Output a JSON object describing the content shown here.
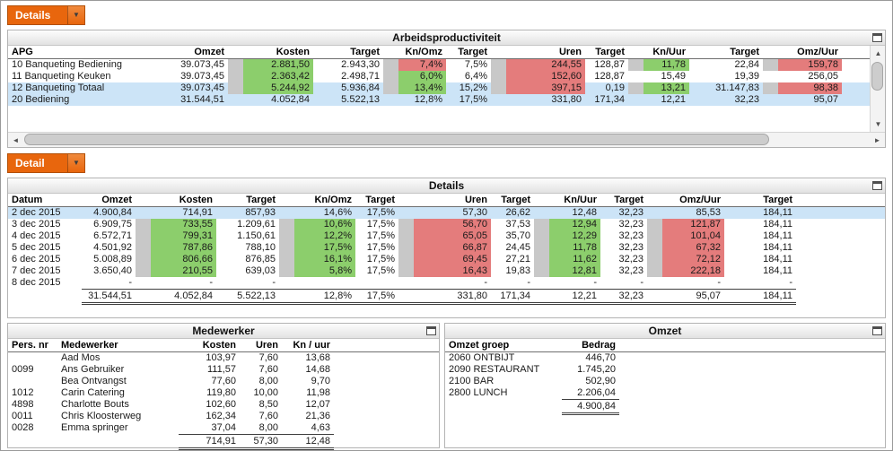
{
  "colors": {
    "accent_orange": "#E8660D",
    "accent_orange_dark": "#B24F06",
    "good_green": "#8CCE6C",
    "bad_red": "#E47C7C",
    "pad_gray": "#C8C8C8",
    "selected_blue": "#CCE4F7"
  },
  "icons": {
    "dropdown_arrow": "▼",
    "scroll_left": "◄",
    "scroll_right": "►",
    "scroll_up": "▲",
    "scroll_down": "▼"
  },
  "selectors": {
    "top": {
      "label": "Details"
    },
    "detail": {
      "label": "Detail"
    }
  },
  "panels": {
    "productivity": {
      "title": "Arbeidsproductiviteit"
    },
    "details": {
      "title": "Details"
    },
    "medewerker": {
      "title": "Medewerker"
    },
    "omzet": {
      "title": "Omzet"
    }
  },
  "tables": {
    "productivity": {
      "columns": [
        "APG",
        "Omzet",
        "Kosten",
        "Target",
        "Kn/Omz",
        "Target",
        "Uren",
        "Target",
        "Kn/Uur",
        "Target",
        "Omz/Uur"
      ],
      "rows": [
        {
          "cells": [
            "10 Banqueting Bediening",
            "39.073,45",
            {
              "v": "2.881,50",
              "c": "green"
            },
            "2.943,30",
            {
              "v": "7,4%",
              "c": "red"
            },
            "7,5%",
            {
              "v": "244,55",
              "c": "red"
            },
            "128,87",
            {
              "v": "11,78",
              "c": "green"
            },
            "22,84",
            {
              "v": "159,78",
              "c": "red"
            }
          ]
        },
        {
          "cells": [
            "11 Banqueting Keuken",
            "39.073,45",
            {
              "v": "2.363,42",
              "c": "green"
            },
            "2.498,71",
            {
              "v": "6,0%",
              "c": "green"
            },
            "6,4%",
            {
              "v": "152,60",
              "c": "red"
            },
            "128,87",
            "15,49",
            "19,39",
            "256,05"
          ]
        },
        {
          "sel": true,
          "cells": [
            "12 Banqueting Totaal",
            "39.073,45",
            {
              "v": "5.244,92",
              "c": "green"
            },
            "5.936,84",
            {
              "v": "13,4%",
              "c": "green"
            },
            "15,2%",
            {
              "v": "397,15",
              "c": "red"
            },
            "0,19",
            {
              "v": "13,21",
              "c": "green"
            },
            "31.147,83",
            {
              "v": "98,38",
              "c": "red"
            }
          ]
        },
        {
          "sel": true,
          "cells": [
            "20 Bediening",
            "31.544,51",
            "4.052,84",
            "5.522,13",
            "12,8%",
            "17,5%",
            "331,80",
            "171,34",
            "12,21",
            "32,23",
            "95,07"
          ]
        }
      ]
    },
    "details": {
      "columns": [
        "Datum",
        "Omzet",
        "Kosten",
        "Target",
        "Kn/Omz",
        "Target",
        "Uren",
        "Target",
        "Kn/Uur",
        "Target",
        "Omz/Uur",
        "Target"
      ],
      "rows": [
        {
          "sel": true,
          "cells": [
            "2 dec 2015",
            "4.900,84",
            "714,91",
            "857,93",
            "14,6%",
            "17,5%",
            "57,30",
            "26,62",
            "12,48",
            "32,23",
            "85,53",
            "184,11"
          ]
        },
        {
          "cells": [
            "3 dec 2015",
            "6.909,75",
            {
              "v": "733,55",
              "c": "green"
            },
            "1.209,61",
            {
              "v": "10,6%",
              "c": "green"
            },
            "17,5%",
            {
              "v": "56,70",
              "c": "red"
            },
            "37,53",
            {
              "v": "12,94",
              "c": "green"
            },
            "32,23",
            {
              "v": "121,87",
              "c": "red"
            },
            "184,11"
          ]
        },
        {
          "cells": [
            "4 dec 2015",
            "6.572,71",
            {
              "v": "799,31",
              "c": "green"
            },
            "1.150,61",
            {
              "v": "12,2%",
              "c": "green"
            },
            "17,5%",
            {
              "v": "65,05",
              "c": "red"
            },
            "35,70",
            {
              "v": "12,29",
              "c": "green"
            },
            "32,23",
            {
              "v": "101,04",
              "c": "red"
            },
            "184,11"
          ]
        },
        {
          "cells": [
            "5 dec 2015",
            "4.501,92",
            {
              "v": "787,86",
              "c": "green"
            },
            "788,10",
            {
              "v": "17,5%",
              "c": "green"
            },
            "17,5%",
            {
              "v": "66,87",
              "c": "red"
            },
            "24,45",
            {
              "v": "11,78",
              "c": "green"
            },
            "32,23",
            {
              "v": "67,32",
              "c": "red"
            },
            "184,11"
          ]
        },
        {
          "cells": [
            "6 dec 2015",
            "5.008,89",
            {
              "v": "806,66",
              "c": "green"
            },
            "876,85",
            {
              "v": "16,1%",
              "c": "green"
            },
            "17,5%",
            {
              "v": "69,45",
              "c": "red"
            },
            "27,21",
            {
              "v": "11,62",
              "c": "green"
            },
            "32,23",
            {
              "v": "72,12",
              "c": "red"
            },
            "184,11"
          ]
        },
        {
          "cells": [
            "7 dec 2015",
            "3.650,40",
            {
              "v": "210,55",
              "c": "green"
            },
            "639,03",
            {
              "v": "5,8%",
              "c": "green"
            },
            "17,5%",
            {
              "v": "16,43",
              "c": "red"
            },
            "19,83",
            {
              "v": "12,81",
              "c": "green"
            },
            "32,23",
            {
              "v": "222,18",
              "c": "red"
            },
            "184,11"
          ]
        },
        {
          "cells": [
            "8 dec 2015",
            "-",
            "-",
            "-",
            "",
            "",
            "-",
            "-",
            "-",
            "-",
            "-",
            "-"
          ]
        },
        {
          "total": true,
          "cells": [
            "",
            "31.544,51",
            "4.052,84",
            "5.522,13",
            "12,8%",
            "17,5%",
            "331,80",
            "171,34",
            "12,21",
            "32,23",
            "95,07",
            "184,11"
          ]
        }
      ]
    },
    "medewerker": {
      "columns": [
        "Pers. nr",
        "Medewerker",
        "Kosten",
        "Uren",
        "Kn / uur"
      ],
      "rows": [
        {
          "cells": [
            "",
            "Aad Mos",
            "103,97",
            "7,60",
            "13,68"
          ]
        },
        {
          "cells": [
            "0099",
            "Ans Gebruiker",
            "111,57",
            "7,60",
            "14,68"
          ]
        },
        {
          "cells": [
            "",
            "Bea Ontvangst",
            "77,60",
            "8,00",
            "9,70"
          ]
        },
        {
          "cells": [
            "1012",
            "Carin Catering",
            "119,80",
            "10,00",
            "11,98"
          ]
        },
        {
          "cells": [
            "4898",
            "Charlotte Bouts",
            "102,60",
            "8,50",
            "12,07"
          ]
        },
        {
          "cells": [
            "0011",
            "Chris Kloosterweg",
            "162,34",
            "7,60",
            "21,36"
          ]
        },
        {
          "cells": [
            "0028",
            "Emma springer",
            "37,04",
            "8,00",
            "4,63"
          ]
        },
        {
          "total": true,
          "cells": [
            "",
            "",
            "714,91",
            "57,30",
            "12,48"
          ]
        }
      ]
    },
    "omzet": {
      "columns": [
        "Omzet groep",
        "Bedrag"
      ],
      "rows": [
        {
          "cells": [
            "2060 ONTBIJT",
            "446,70"
          ]
        },
        {
          "cells": [
            "2090 RESTAURANT",
            "1.745,20"
          ]
        },
        {
          "cells": [
            "2100 BAR",
            "502,90"
          ]
        },
        {
          "cells": [
            "2800 LUNCH",
            "2.206,04"
          ]
        },
        {
          "total": true,
          "cells": [
            "",
            "4.900,84"
          ]
        }
      ]
    }
  }
}
